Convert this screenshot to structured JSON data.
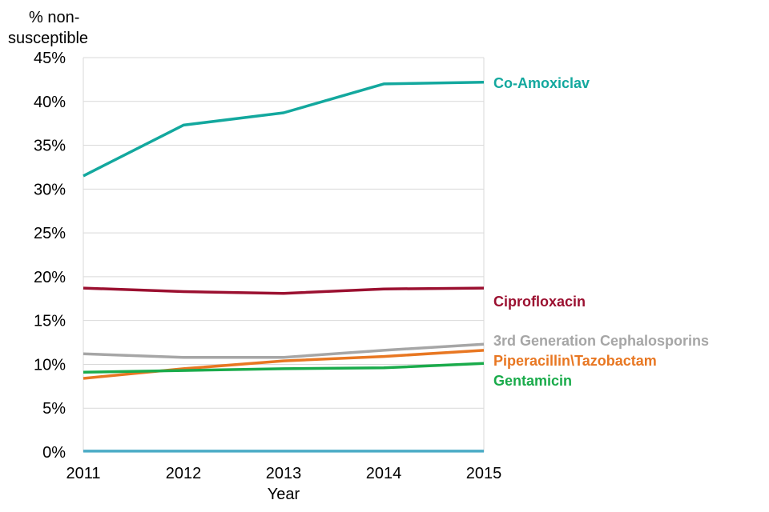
{
  "chart_data": {
    "type": "line",
    "title": "",
    "xlabel": "Year",
    "ylabel": "% non-susceptible",
    "ylabel_lines": [
      "% non-",
      "susceptible"
    ],
    "x": [
      2011,
      2012,
      2013,
      2014,
      2015
    ],
    "x_tick_labels": [
      "2011",
      "2012",
      "2013",
      "2014",
      "2015"
    ],
    "ylim": [
      0,
      45
    ],
    "y_ticks": [
      0,
      5,
      10,
      15,
      20,
      25,
      30,
      35,
      40,
      45
    ],
    "y_tick_labels": [
      "0%",
      "5%",
      "10%",
      "15%",
      "20%",
      "25%",
      "30%",
      "35%",
      "40%",
      "45%"
    ],
    "grid": true,
    "legend": "inline labels at right end of lines",
    "series": [
      {
        "name": "Co-Amoxiclav",
        "color": "#13a89e",
        "values": [
          31.5,
          37.3,
          38.7,
          42.0,
          42.2
        ]
      },
      {
        "name": "Ciprofloxacin",
        "color": "#9b1030",
        "values": [
          18.7,
          18.3,
          18.1,
          18.6,
          18.7
        ]
      },
      {
        "name": "3rd Generation Cephalosporins",
        "color": "#a6a6a6",
        "values": [
          11.2,
          10.8,
          10.8,
          11.6,
          12.3
        ]
      },
      {
        "name": "Piperacillin\\Tazobactam",
        "color": "#e87722",
        "values": [
          8.4,
          9.5,
          10.4,
          10.9,
          11.6
        ]
      },
      {
        "name": "Gentamicin",
        "color": "#1aab4b",
        "values": [
          9.1,
          9.3,
          9.5,
          9.6,
          10.1
        ]
      },
      {
        "name": "",
        "color": "#4bacc6",
        "values": [
          0.1,
          0.1,
          0.1,
          0.1,
          0.1
        ]
      }
    ]
  }
}
